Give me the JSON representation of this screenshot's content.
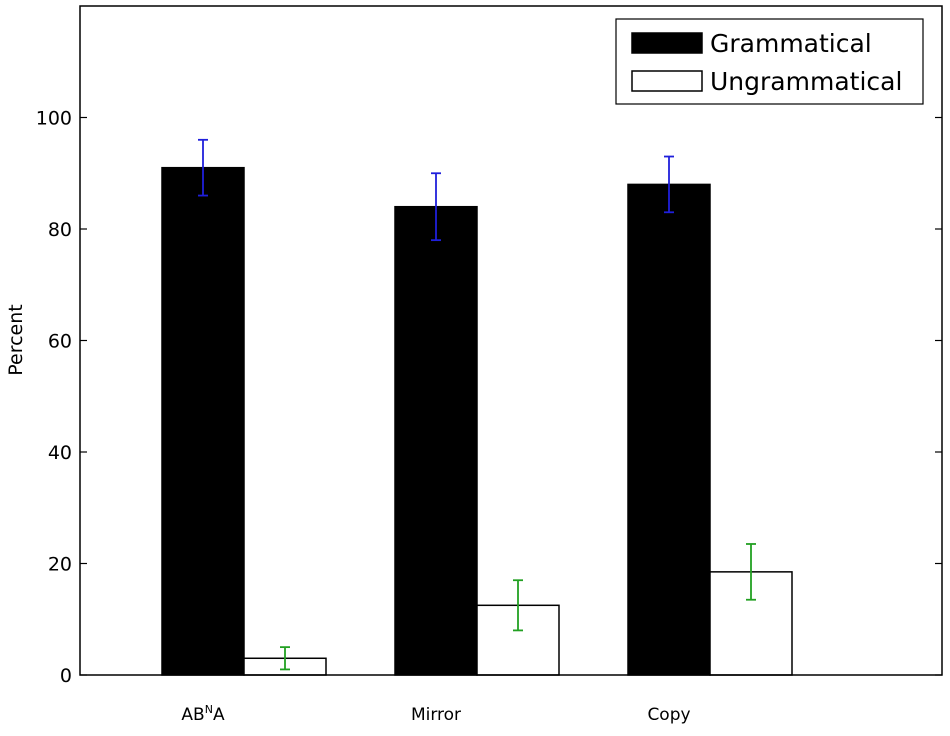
{
  "chart_data": {
    "type": "bar",
    "title": "",
    "xlabel": "",
    "ylabel": "Percent",
    "ylim": [
      0,
      120
    ],
    "yticks": [
      0,
      20,
      40,
      60,
      80,
      100
    ],
    "categories": [
      {
        "base": "AB",
        "sup": "N",
        "tail": "A"
      },
      {
        "base": "Mirror",
        "sup": "",
        "tail": ""
      },
      {
        "base": "Copy",
        "sup": "",
        "tail": ""
      }
    ],
    "series": [
      {
        "name": "Grammatical",
        "values": [
          91,
          84,
          88
        ],
        "errors": [
          5,
          6,
          5
        ],
        "fill": "#000000",
        "error_color": "#1f1fdb"
      },
      {
        "name": "Ungrammatical",
        "values": [
          3,
          12.5,
          18.5
        ],
        "errors": [
          2,
          4.5,
          5
        ],
        "fill": "#ffffff",
        "error_color": "#22a022"
      }
    ],
    "legend": {
      "position": "top-right"
    },
    "grid": false
  }
}
